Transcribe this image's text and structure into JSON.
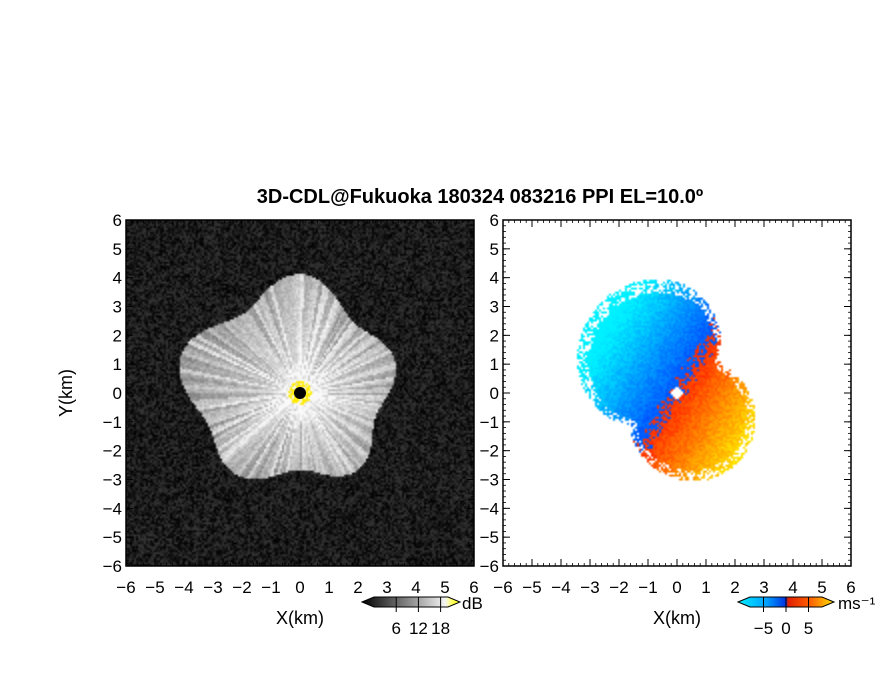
{
  "chart_data": [
    {
      "type": "heatmap",
      "title": "3D-CDL@Fukuoka 180324 083216 PPI EL=10.0º",
      "variable_unit": "dB",
      "xlabel": "X(km)",
      "ylabel": "Y(km)",
      "xlim": [
        -6,
        6
      ],
      "ylim": [
        -6,
        6
      ],
      "xticks": [
        "−6",
        "−5",
        "−4",
        "−3",
        "−2",
        "−1",
        "0",
        "1",
        "2",
        "3",
        "4",
        "5",
        "6"
      ],
      "yticks": [
        "−6",
        "−5",
        "−4",
        "−3",
        "−2",
        "−1",
        "0",
        "1",
        "2",
        "3",
        "4",
        "5",
        "6"
      ],
      "colorbar": {
        "ticks": [
          "6",
          "12",
          "18"
        ],
        "tick_values": [
          6,
          12,
          18
        ],
        "range": [
          0,
          20
        ],
        "colors": [
          "#000000",
          "#ffffff",
          "#ffff00"
        ]
      },
      "echo_extent_km": {
        "north": 4.0,
        "south": -3.2,
        "west": -4.2,
        "east": 3.3
      },
      "center_marker_km": [
        0,
        0
      ]
    },
    {
      "type": "heatmap",
      "variable_unit": "ms⁻¹",
      "xlabel": "X(km)",
      "xlim": [
        -6,
        6
      ],
      "ylim": [
        -6,
        6
      ],
      "xticks": [
        "−6",
        "−5",
        "−4",
        "−3",
        "−2",
        "−1",
        "0",
        "1",
        "2",
        "3",
        "4",
        "5",
        "6"
      ],
      "yticks": [
        "−6",
        "−5",
        "−4",
        "−3",
        "−2",
        "−1",
        "0",
        "1",
        "2",
        "3",
        "4",
        "5",
        "6"
      ],
      "colorbar": {
        "ticks": [
          "−5",
          "0",
          "5"
        ],
        "tick_values": [
          -5,
          0,
          5
        ],
        "range": [
          -8,
          8
        ],
        "colors": [
          "#00e5ff",
          "#0050ff",
          "#ff2a00",
          "#ffe000"
        ]
      },
      "echo_extent_km": {
        "north": 4.0,
        "south": -3.1,
        "west": -3.8,
        "east": 3.0
      },
      "center_marker_km": [
        0,
        0
      ]
    }
  ]
}
